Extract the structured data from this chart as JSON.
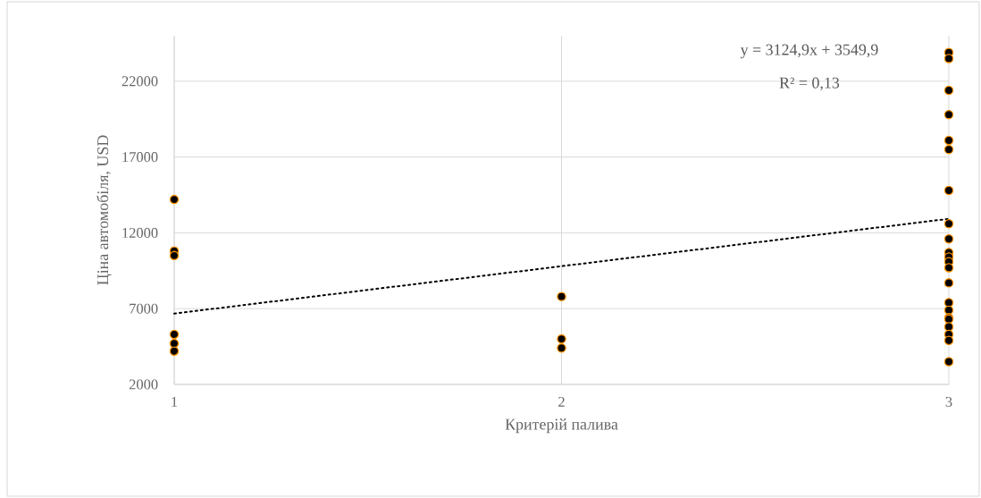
{
  "chart_data": {
    "type": "scatter",
    "xlabel": "Критерій палива",
    "ylabel": "Ціна автомобіля, USD",
    "xlim": [
      1,
      3
    ],
    "xticks": [
      1,
      2,
      3
    ],
    "ylim": [
      2000,
      25000
    ],
    "yticks": [
      2000,
      7000,
      12000,
      17000,
      22000
    ],
    "grid": true,
    "marker": "circle",
    "series": [
      {
        "color": "#000000",
        "x": [
          1,
          1,
          1,
          1,
          1,
          1,
          2,
          2,
          2,
          3,
          3,
          3,
          3,
          3,
          3,
          3,
          3,
          3,
          3,
          3,
          3,
          3,
          3,
          3,
          3,
          3,
          3,
          3,
          3,
          3,
          3
        ],
        "values": [
          14200,
          10800,
          10500,
          5300,
          4700,
          4200,
          7800,
          5000,
          4400,
          23900,
          23500,
          21400,
          19800,
          18100,
          17500,
          14800,
          12600,
          11600,
          10700,
          10400,
          10100,
          9700,
          8700,
          7400,
          6900,
          6400,
          6300,
          5800,
          5300,
          4900,
          3500
        ]
      },
      {
        "type": "line",
        "color": "#000000",
        "line_style": "dotted",
        "marker": "none",
        "x": [
          1,
          3
        ],
        "values": [
          6675,
          12925
        ]
      }
    ],
    "annotations": [
      "y = 3124,9x + 3549,9",
      "R² = 0,13"
    ]
  }
}
